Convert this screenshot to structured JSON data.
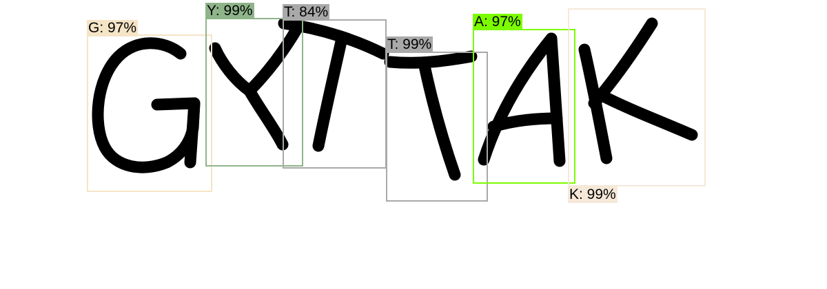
{
  "detections": [
    {
      "label": "G: 97%",
      "color": "#f5e4c6"
    },
    {
      "label": "Y: 99%",
      "color": "#8fb48a"
    },
    {
      "label": "T: 84%",
      "color": "#a9a9a9"
    },
    {
      "label": "T: 99%",
      "color": "#a9a9a9"
    },
    {
      "label": "A: 97%",
      "color": "#7cfc00"
    },
    {
      "label": "K: 99%",
      "color": "#f5e8d8"
    }
  ]
}
